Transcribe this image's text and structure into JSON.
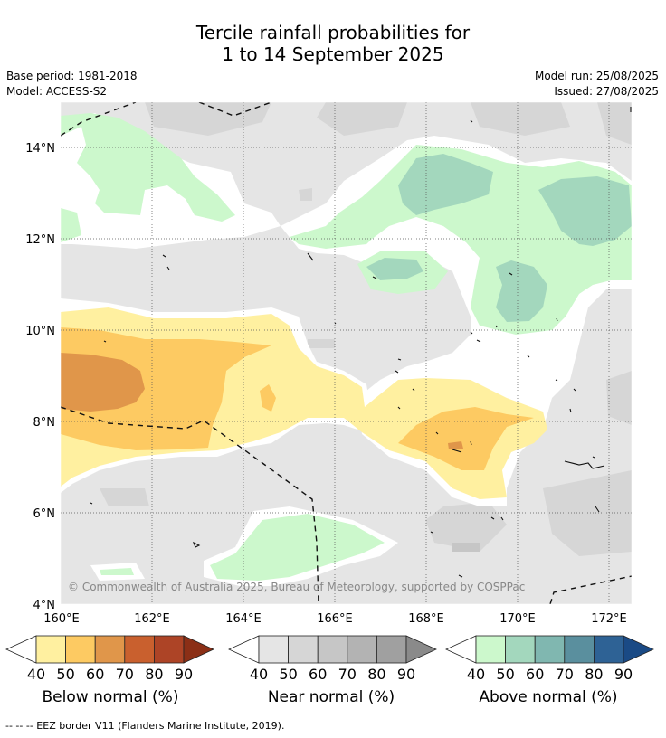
{
  "header": {
    "title_line1": "Tercile rainfall probabilities for",
    "title_line2": "1 to 14 September 2025",
    "base_period": "Base period: 1981-2018",
    "model": "Model: ACCESS-S2",
    "model_run": "Model run: 25/08/2025",
    "issued": "Issued: 27/08/2025"
  },
  "map": {
    "lat_labels": [
      "14°N",
      "12°N",
      "10°N",
      "8°N",
      "6°N",
      "4°N"
    ],
    "lon_labels": [
      "160°E",
      "162°E",
      "164°E",
      "166°E",
      "168°E",
      "170°E",
      "172°E"
    ],
    "copyright": "© Commonwealth of Australia 2025, Bureau of Meteorology, supported by COSPPac"
  },
  "legends": [
    {
      "label": "Below normal (%)",
      "ticks": [
        "40",
        "50",
        "60",
        "70",
        "80",
        "90"
      ],
      "colors": [
        "#fff0a0",
        "#fdca62",
        "#e0964a",
        "#c9602e",
        "#ad4426",
        "#8b2f16"
      ]
    },
    {
      "label": "Near normal (%)",
      "ticks": [
        "40",
        "50",
        "60",
        "70",
        "80",
        "90"
      ],
      "colors": [
        "#e5e5e5",
        "#d6d6d6",
        "#c6c6c6",
        "#b3b3b3",
        "#a0a0a0",
        "#8a8a8a"
      ]
    },
    {
      "label": "Above normal (%)",
      "ticks": [
        "40",
        "50",
        "60",
        "70",
        "80",
        "90"
      ],
      "colors": [
        "#ccf8cc",
        "#a3d7bd",
        "#80b7b0",
        "#5a8f9e",
        "#2e6295",
        "#1a4a85"
      ]
    }
  ],
  "footer": "--  --  -- EEZ border V11 (Flanders Marine Institute, 2019)."
}
